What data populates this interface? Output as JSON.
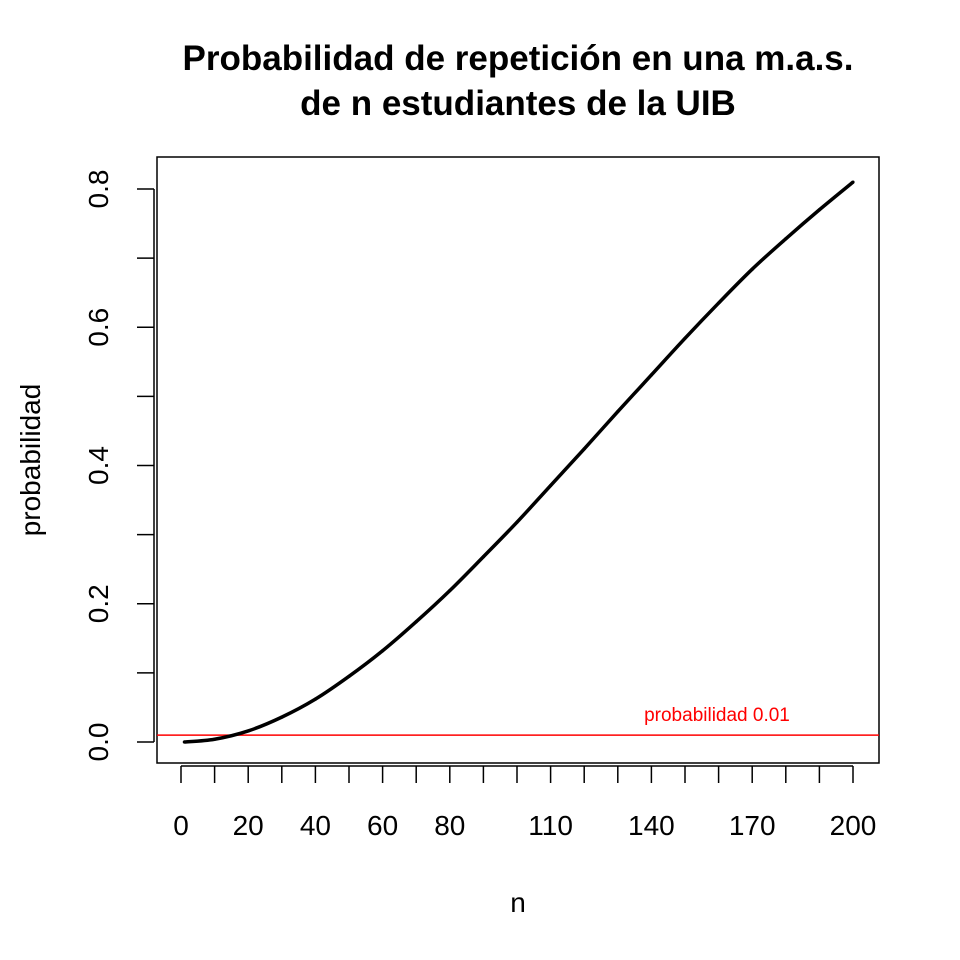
{
  "chart_data": {
    "type": "line",
    "title_lines": [
      "Probabilidad de repetición en una m.a.s.",
      "de n estudiantes de la UIB"
    ],
    "xlabel": "n",
    "ylabel": "probabilidad",
    "xlim": [
      1,
      200
    ],
    "ylim": [
      0,
      0.8
    ],
    "grid": false,
    "x_ticks": [
      0,
      10,
      20,
      30,
      40,
      50,
      60,
      70,
      80,
      90,
      100,
      110,
      120,
      130,
      140,
      150,
      160,
      170,
      180,
      190,
      200
    ],
    "x_tick_labels": [
      {
        "value": 0,
        "label": "0"
      },
      {
        "value": 20,
        "label": "20"
      },
      {
        "value": 40,
        "label": "40"
      },
      {
        "value": 60,
        "label": "60"
      },
      {
        "value": 80,
        "label": "80"
      },
      {
        "value": 110,
        "label": "110"
      },
      {
        "value": 140,
        "label": "140"
      },
      {
        "value": 170,
        "label": "170"
      },
      {
        "value": 200,
        "label": "200"
      }
    ],
    "y_ticks": [
      0,
      0.1,
      0.2,
      0.3,
      0.4,
      0.5,
      0.6,
      0.7,
      0.8
    ],
    "y_tick_labels": [
      {
        "value": 0,
        "label": "0.0"
      },
      {
        "value": 0.2,
        "label": "0.2"
      },
      {
        "value": 0.4,
        "label": "0.4"
      },
      {
        "value": 0.6,
        "label": "0.6"
      },
      {
        "value": 0.8,
        "label": "0.8"
      }
    ],
    "series": [
      {
        "color": "#000000",
        "x": [
          1,
          10,
          20,
          30,
          40,
          50,
          60,
          70,
          80,
          90,
          100,
          110,
          120,
          130,
          140,
          150,
          160,
          170,
          180,
          190,
          200
        ],
        "y": [
          0,
          0.004,
          0.016,
          0.036,
          0.062,
          0.095,
          0.132,
          0.174,
          0.219,
          0.268,
          0.318,
          0.371,
          0.424,
          0.478,
          0.531,
          0.584,
          0.635,
          0.684,
          0.728,
          0.77,
          0.81
        ]
      }
    ],
    "reference_line": {
      "y": 0.01,
      "color": "#ff0000",
      "label": "probabilidad 0.01"
    }
  }
}
